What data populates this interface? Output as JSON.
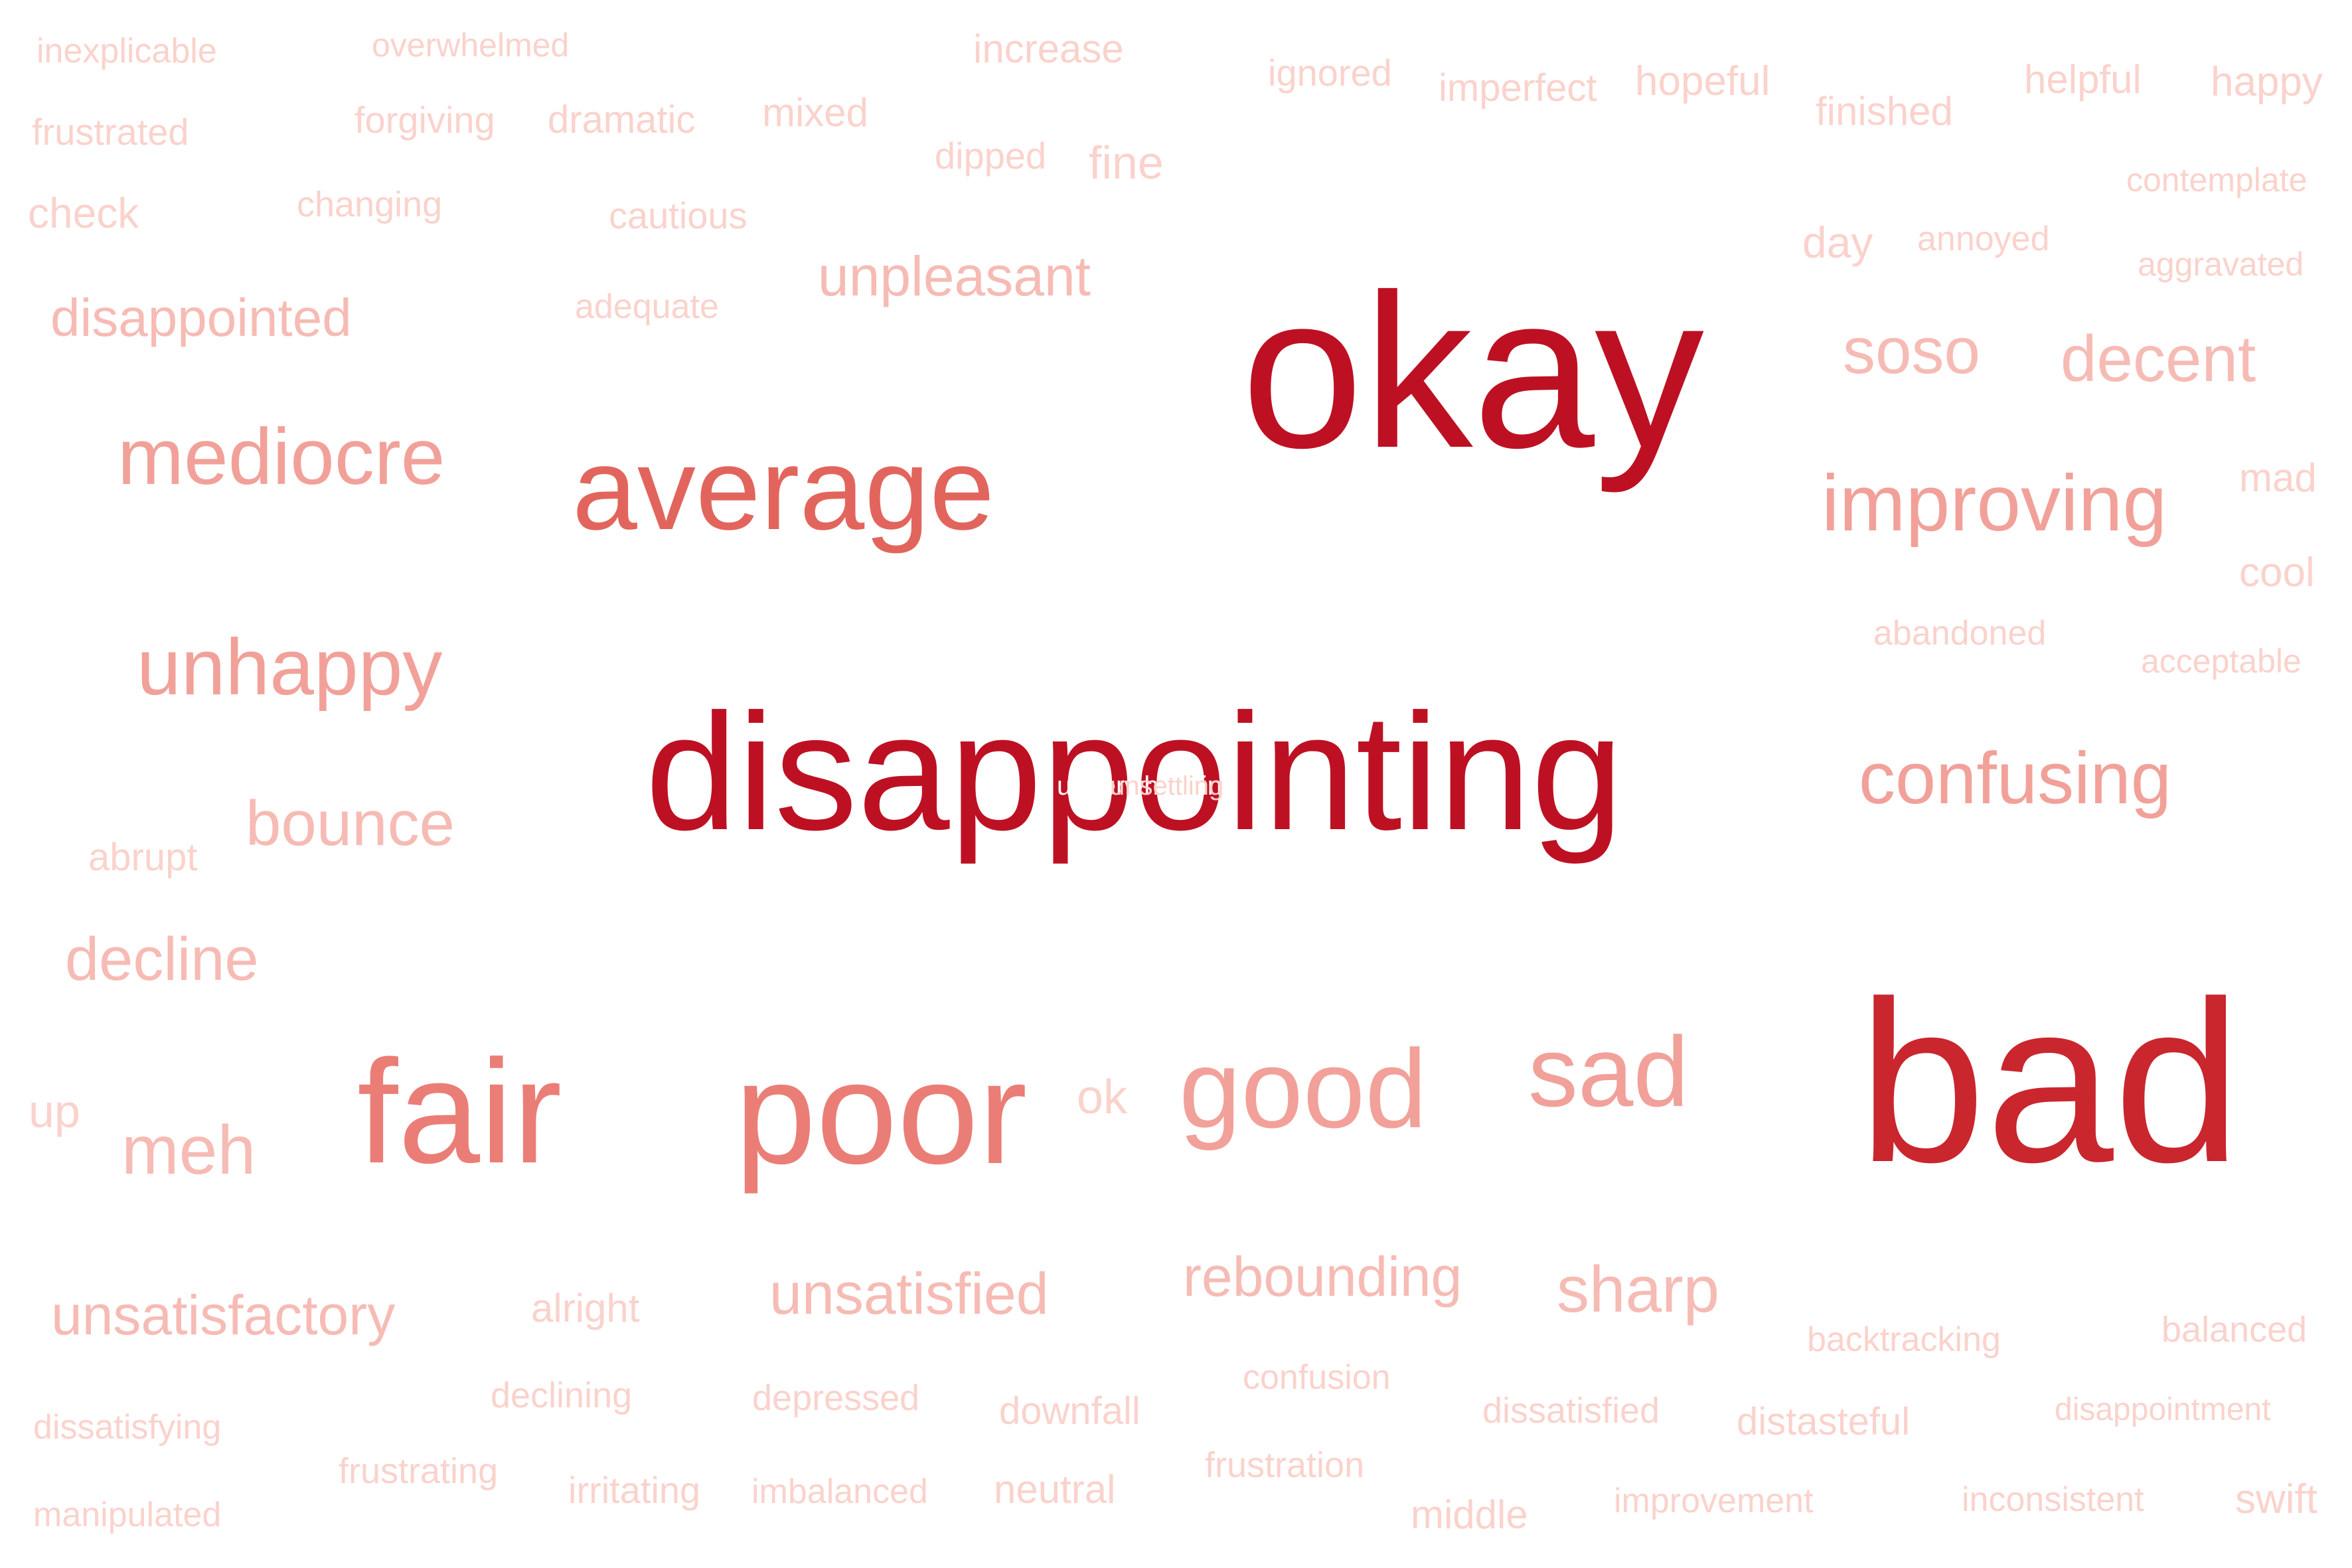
{
  "colors": {
    "background": "#ffffff",
    "darkest": "#bd1123",
    "dark": "#c9262e",
    "medium": "#e2655d",
    "medium_light": "#ea7e77",
    "light": "#f1a199",
    "lighter": "#f6bbb4",
    "faint": "#fad2cc"
  },
  "words": [
    {
      "text": "inexplicable",
      "tier": "faint"
    },
    {
      "text": "overwhelmed",
      "tier": "faint"
    },
    {
      "text": "increase",
      "tier": "faint"
    },
    {
      "text": "ignored",
      "tier": "faint"
    },
    {
      "text": "imperfect",
      "tier": "faint"
    },
    {
      "text": "hopeful",
      "tier": "faint"
    },
    {
      "text": "helpful",
      "tier": "faint"
    },
    {
      "text": "happy",
      "tier": "faint"
    },
    {
      "text": "frustrated",
      "tier": "faint"
    },
    {
      "text": "forgiving",
      "tier": "faint"
    },
    {
      "text": "dramatic",
      "tier": "faint"
    },
    {
      "text": "mixed",
      "tier": "faint"
    },
    {
      "text": "finished",
      "tier": "faint"
    },
    {
      "text": "dipped",
      "tier": "faint"
    },
    {
      "text": "fine",
      "tier": "faint"
    },
    {
      "text": "check",
      "tier": "faint"
    },
    {
      "text": "changing",
      "tier": "faint"
    },
    {
      "text": "cautious",
      "tier": "faint"
    },
    {
      "text": "contemplate",
      "tier": "faint"
    },
    {
      "text": "day",
      "tier": "faint"
    },
    {
      "text": "annoyed",
      "tier": "faint"
    },
    {
      "text": "aggravated",
      "tier": "faint"
    },
    {
      "text": "unpleasant",
      "tier": "lighter"
    },
    {
      "text": "disappointed",
      "tier": "lighter"
    },
    {
      "text": "adequate",
      "tier": "faint"
    },
    {
      "text": "okay",
      "tier": "darkest"
    },
    {
      "text": "soso",
      "tier": "lighter"
    },
    {
      "text": "decent",
      "tier": "lighter"
    },
    {
      "text": "mediocre",
      "tier": "light"
    },
    {
      "text": "average",
      "tier": "medium"
    },
    {
      "text": "improving",
      "tier": "light"
    },
    {
      "text": "mad",
      "tier": "faint"
    },
    {
      "text": "cool",
      "tier": "faint"
    },
    {
      "text": "abandoned",
      "tier": "faint"
    },
    {
      "text": "acceptable",
      "tier": "faint"
    },
    {
      "text": "unhappy",
      "tier": "light"
    },
    {
      "text": "disappointing",
      "tier": "darkest"
    },
    {
      "text": "confusing",
      "tier": "light"
    },
    {
      "text": "abrupt",
      "tier": "faint"
    },
    {
      "text": "bounce",
      "tier": "lighter"
    },
    {
      "text": "decline",
      "tier": "lighter"
    },
    {
      "text": "up",
      "tier": "faint"
    },
    {
      "text": "meh",
      "tier": "lighter"
    },
    {
      "text": "fair",
      "tier": "medium_light"
    },
    {
      "text": "poor",
      "tier": "medium_light"
    },
    {
      "text": "ok",
      "tier": "faint"
    },
    {
      "text": "good",
      "tier": "light"
    },
    {
      "text": "sad",
      "tier": "light"
    },
    {
      "text": "bad",
      "tier": "dark"
    },
    {
      "text": "rebounding",
      "tier": "lighter"
    },
    {
      "text": "unsatisfactory",
      "tier": "lighter"
    },
    {
      "text": "alright",
      "tier": "faint"
    },
    {
      "text": "unsatisfied",
      "tier": "lighter"
    },
    {
      "text": "sharp",
      "tier": "lighter"
    },
    {
      "text": "backtracking",
      "tier": "faint"
    },
    {
      "text": "balanced",
      "tier": "faint"
    },
    {
      "text": "confusion",
      "tier": "faint"
    },
    {
      "text": "declining",
      "tier": "faint"
    },
    {
      "text": "depressed",
      "tier": "faint"
    },
    {
      "text": "downfall",
      "tier": "faint"
    },
    {
      "text": "dissatisfied",
      "tier": "faint"
    },
    {
      "text": "distasteful",
      "tier": "faint"
    },
    {
      "text": "disappointment",
      "tier": "faint"
    },
    {
      "text": "dissatisfying",
      "tier": "faint"
    },
    {
      "text": "frustrating",
      "tier": "faint"
    },
    {
      "text": "frustration",
      "tier": "faint"
    },
    {
      "text": "manipulated",
      "tier": "faint"
    },
    {
      "text": "irritating",
      "tier": "faint"
    },
    {
      "text": "imbalanced",
      "tier": "faint"
    },
    {
      "text": "neutral",
      "tier": "faint"
    },
    {
      "text": "middle",
      "tier": "faint"
    },
    {
      "text": "improvement",
      "tier": "faint"
    },
    {
      "text": "inconsistent",
      "tier": "faint"
    },
    {
      "text": "swift",
      "tier": "faint"
    }
  ],
  "overlay_words": [
    "underwhelming",
    "unsettling"
  ]
}
